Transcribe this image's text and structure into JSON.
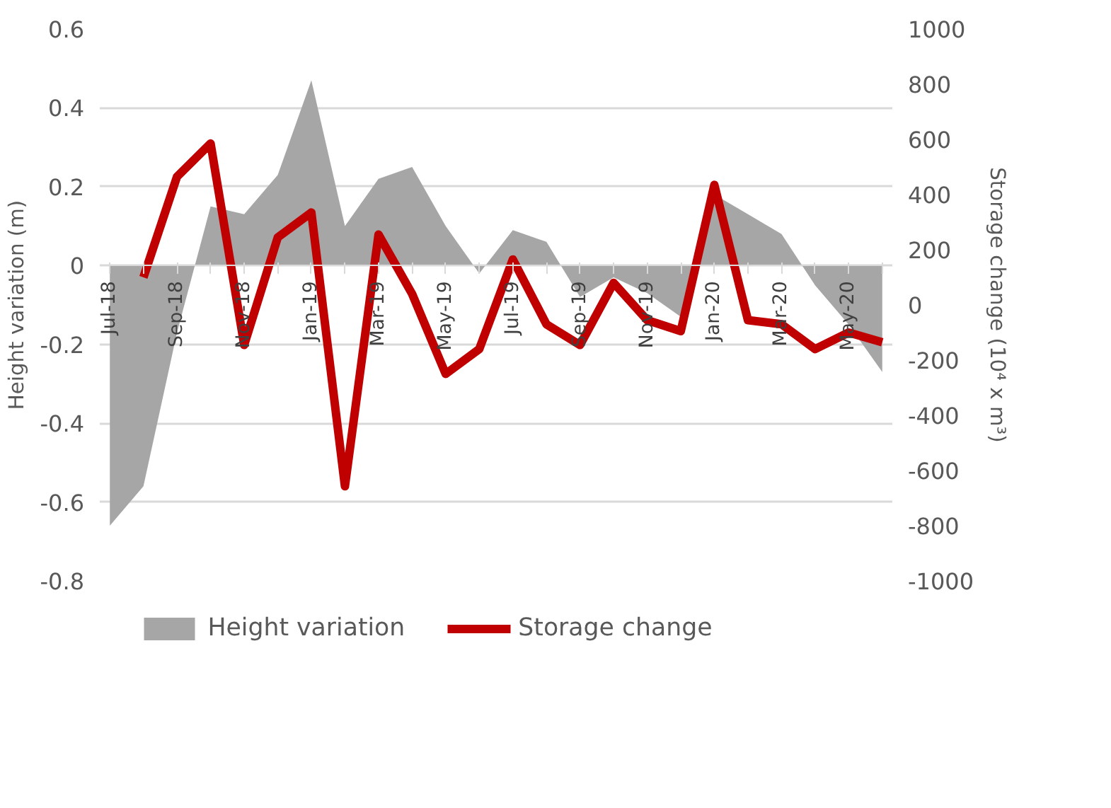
{
  "chart_data": {
    "type": "area",
    "ylabel": "Height variation (m)",
    "y2label": "Storage change (10⁴ x m³)",
    "categories": [
      "Jul-18",
      null,
      "Sep-18",
      null,
      "Nov-18",
      null,
      "Jan-19",
      null,
      "Mar-19",
      null,
      "May-19",
      null,
      "Jul-19",
      null,
      "Sep-19",
      null,
      "Nov-19",
      null,
      "Jan-20",
      null,
      "Mar-20",
      null,
      "May-20",
      null
    ],
    "series": [
      {
        "name": "Height variation",
        "color": "#a6a6a6",
        "values": [
          -0.66,
          -0.56,
          -0.17,
          0.15,
          0.13,
          0.23,
          0.47,
          0.1,
          0.22,
          0.25,
          0.1,
          -0.02,
          0.09,
          0.06,
          -0.08,
          -0.03,
          -0.07,
          -0.13,
          0.18,
          0.13,
          0.08,
          -0.05,
          -0.15,
          -0.27
        ]
      },
      {
        "name": "Storage change",
        "type": "line",
        "axis": "y2",
        "color": "#c00000",
        "values": [
          null,
          100,
          465,
          585,
          -145,
          245,
          335,
          -657,
          255,
          40,
          -250,
          -160,
          165,
          -70,
          -145,
          80,
          -55,
          -95,
          435,
          -55,
          -70,
          -160,
          -100,
          -135
        ]
      }
    ],
    "ylim": [
      -0.8,
      0.6
    ],
    "yticks": [
      -0.8,
      -0.6,
      -0.4,
      -0.2,
      0,
      0.2,
      0.4,
      0.6
    ],
    "y2lim": [
      -1000,
      1000
    ],
    "y2ticks": [
      -1000,
      -800,
      -600,
      -400,
      -200,
      0,
      200,
      400,
      600,
      800,
      1000
    ],
    "grid": "y",
    "legend": "bottom",
    "line_style": "solid",
    "marker": "none"
  }
}
